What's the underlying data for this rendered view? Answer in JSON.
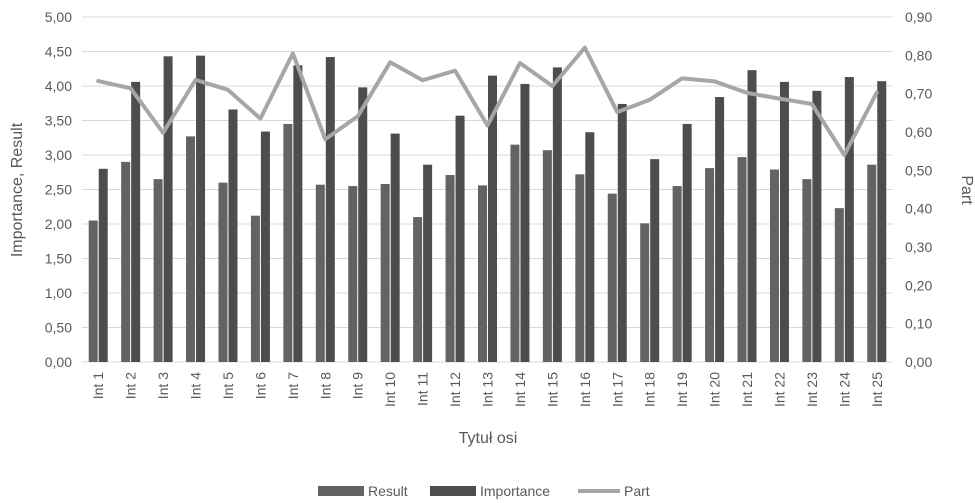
{
  "chart_data": {
    "type": "bar",
    "categories": [
      "Int 1",
      "Int 2",
      "Int 3",
      "Int 4",
      "Int 5",
      "Int 6",
      "Int 7",
      "Int 8",
      "Int 9",
      "Int 10",
      "Int 11",
      "Int 12",
      "Int 13",
      "Int 14",
      "Int 15",
      "Int 16",
      "Int 17",
      "Int 18",
      "Int 19",
      "Int 20",
      "Int 21",
      "Int 22",
      "Int 23",
      "Int 24",
      "Int 25"
    ],
    "series": [
      {
        "name": "Result",
        "type": "bar",
        "axis": "left",
        "color": "#636363",
        "values": [
          2.05,
          2.9,
          2.65,
          3.27,
          2.6,
          2.12,
          3.45,
          2.57,
          2.55,
          2.58,
          2.1,
          2.71,
          2.56,
          3.15,
          3.07,
          2.72,
          2.44,
          2.01,
          2.55,
          2.81,
          2.97,
          2.79,
          2.65,
          2.23,
          2.86
        ]
      },
      {
        "name": "Importance",
        "type": "bar",
        "axis": "left",
        "color": "#4d4d4d",
        "values": [
          2.8,
          4.06,
          4.43,
          4.44,
          3.66,
          3.34,
          4.3,
          4.42,
          3.98,
          3.31,
          2.86,
          3.57,
          4.15,
          4.03,
          4.27,
          3.33,
          3.74,
          2.94,
          3.45,
          3.84,
          4.23,
          4.06,
          3.93,
          4.13,
          4.07
        ]
      },
      {
        "name": "Part",
        "type": "line",
        "axis": "right",
        "color": "#a6a6a6",
        "values": [
          0.733,
          0.714,
          0.598,
          0.736,
          0.71,
          0.635,
          0.805,
          0.581,
          0.641,
          0.782,
          0.735,
          0.76,
          0.617,
          0.78,
          0.72,
          0.82,
          0.652,
          0.684,
          0.74,
          0.732,
          0.702,
          0.687,
          0.673,
          0.54,
          0.703
        ]
      }
    ],
    "xlabel": "Tytuł osi",
    "ylabel": "Importance, Result",
    "y2label": "Part",
    "ylim": [
      0,
      5
    ],
    "y2lim": [
      0,
      0.9
    ],
    "yticks": [
      "0,00",
      "0,50",
      "1,00",
      "1,50",
      "2,00",
      "2,50",
      "3,00",
      "3,50",
      "4,00",
      "4,50",
      "5,00"
    ],
    "y2ticks": [
      "0,00",
      "0,10",
      "0,20",
      "0,30",
      "0,40",
      "0,50",
      "0,60",
      "0,70",
      "0,80",
      "0,90"
    ],
    "grid": true,
    "legend": {
      "position": "bottom",
      "entries": [
        "Result",
        "Importance",
        "Part"
      ]
    }
  }
}
